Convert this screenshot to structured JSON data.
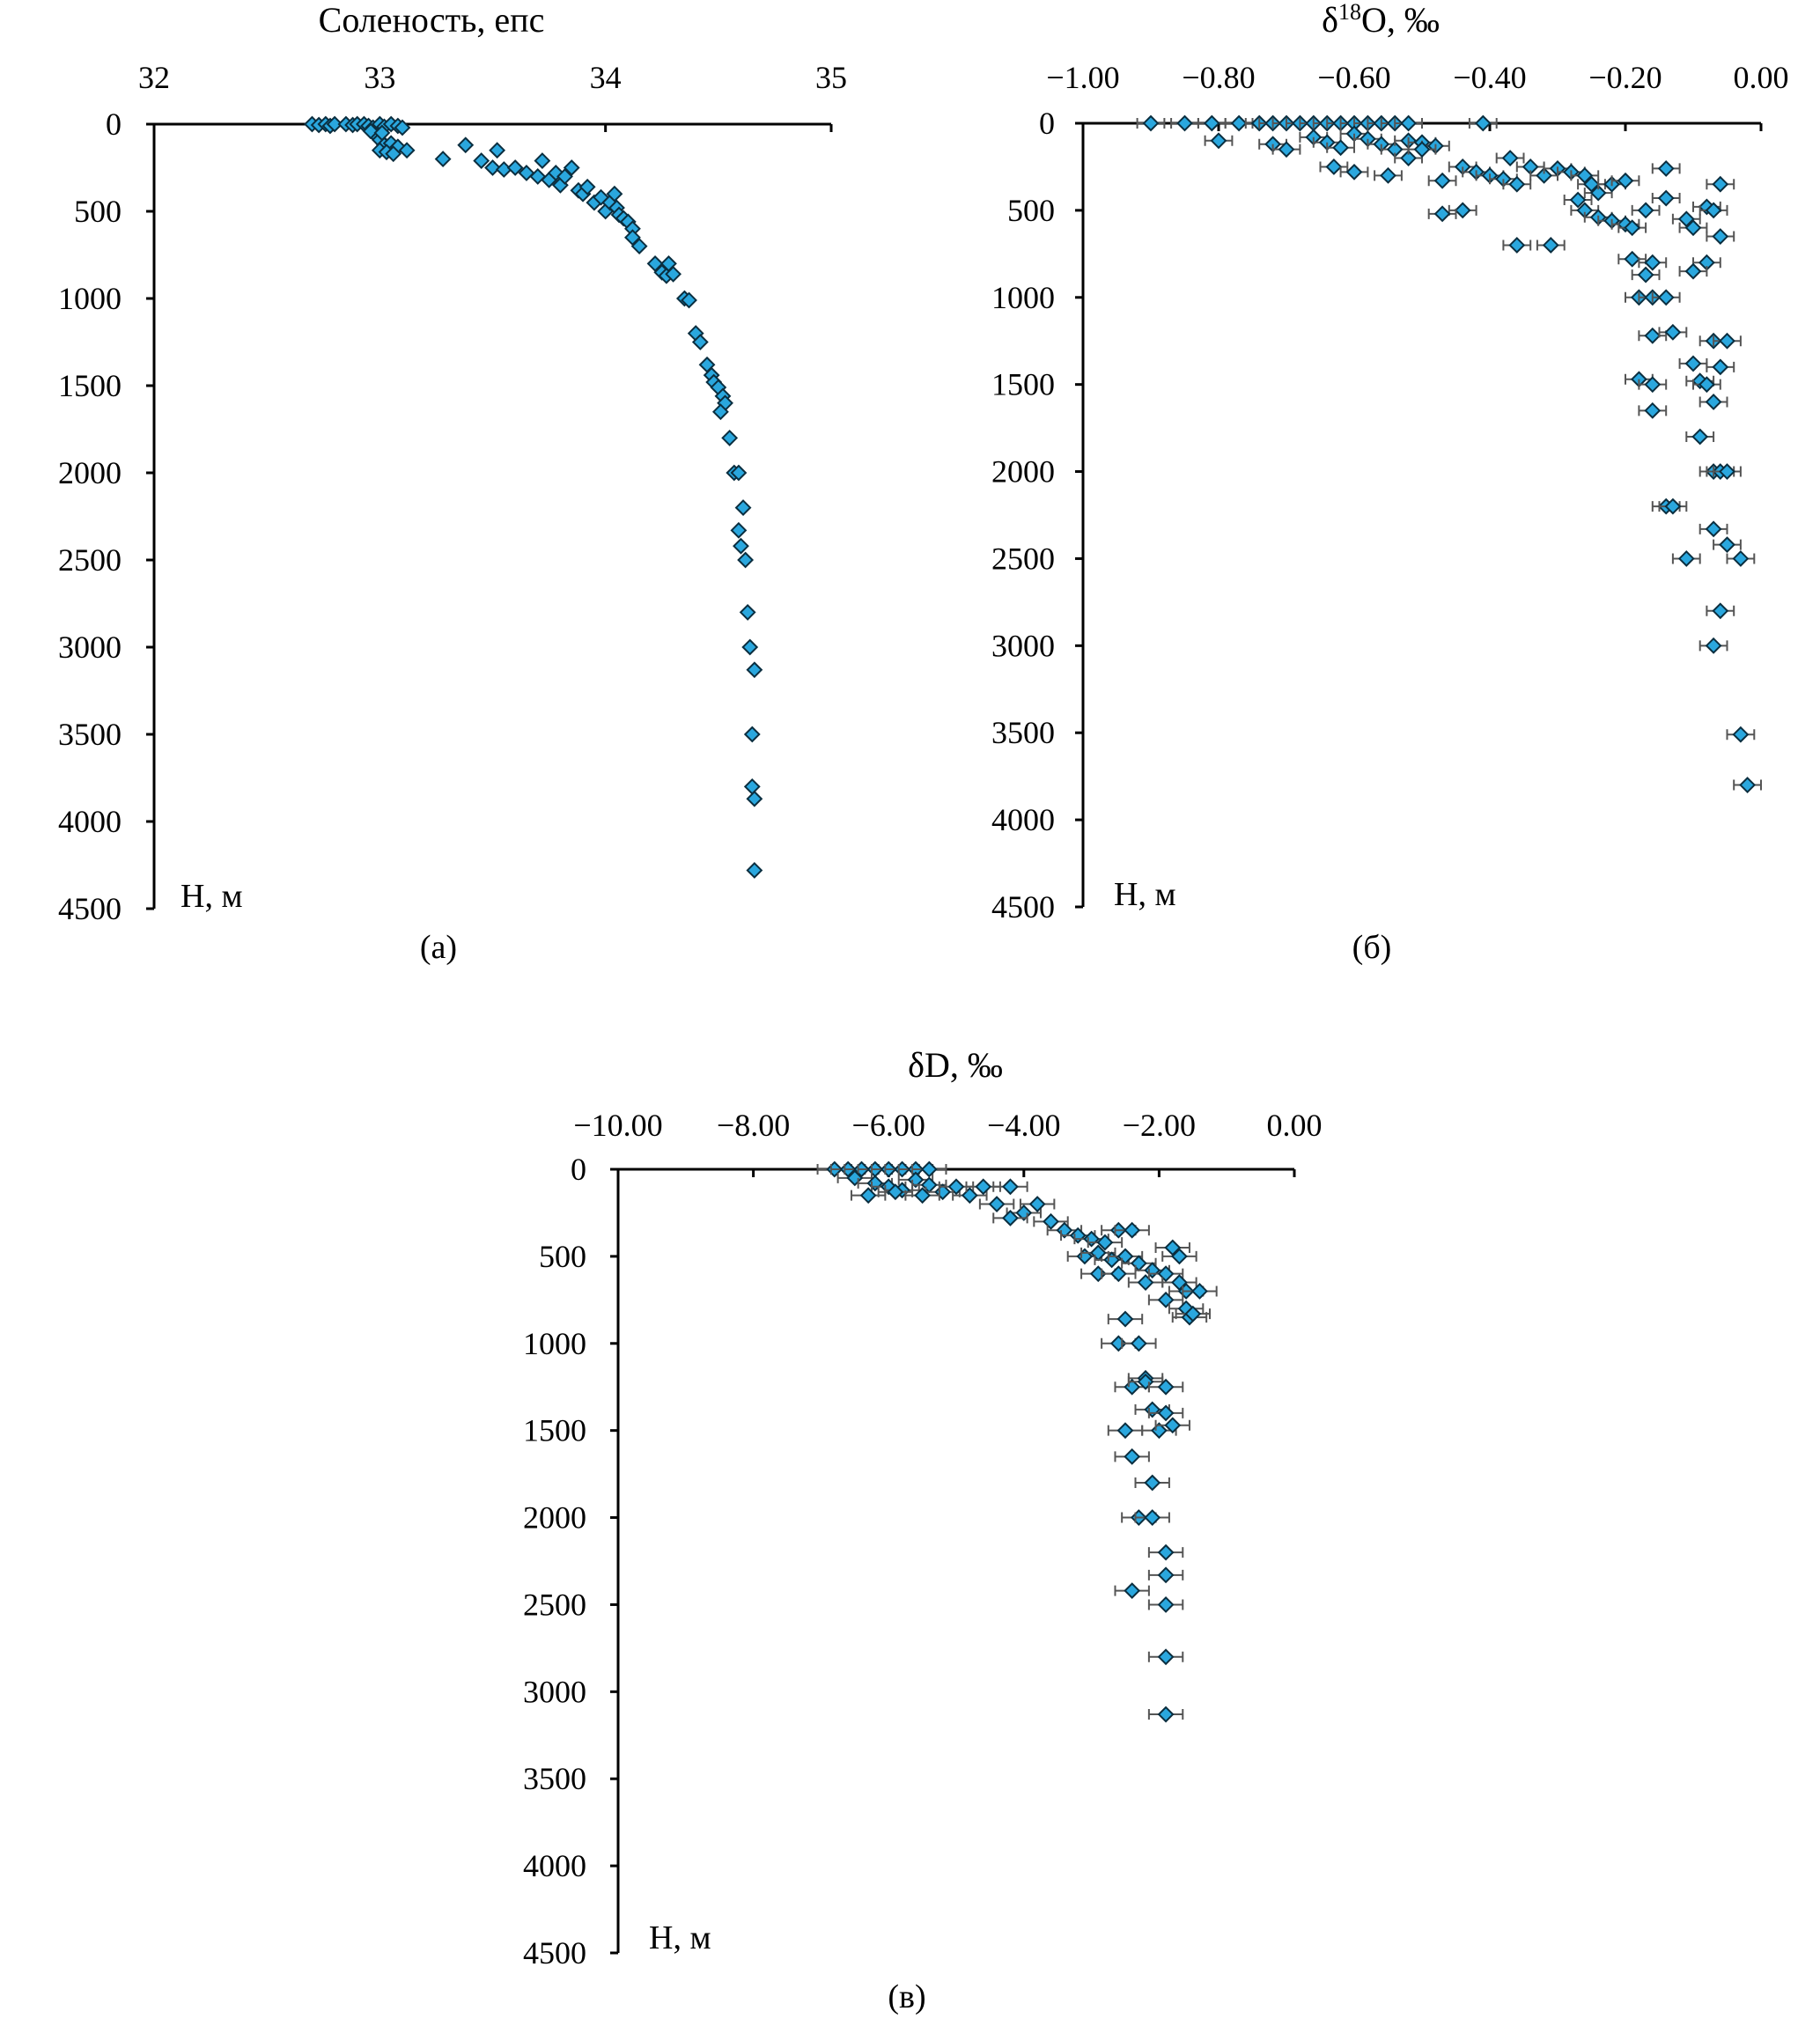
{
  "colors": {
    "point_fill": "#2aa7de",
    "point_stroke": "#0b2e3f",
    "error_bar": "#555555",
    "axis": "#000000"
  },
  "chart_data": [
    {
      "type": "scatter",
      "title": "Соленость, епс",
      "caption": "(а)",
      "ylabel": "H, м",
      "xlim": [
        32,
        35
      ],
      "ylim": [
        4500,
        0
      ],
      "x_axis_position": "top",
      "y_axis_inverted": true,
      "grid": false,
      "legend": "none",
      "x_ticks": [
        32,
        33,
        34,
        35
      ],
      "x_tick_labels": [
        "32",
        "33",
        "34",
        "35"
      ],
      "y_ticks": [
        0,
        500,
        1000,
        1500,
        2000,
        2500,
        3000,
        3500,
        4000,
        4500
      ],
      "y_tick_labels": [
        "0",
        "500",
        "1000",
        "1500",
        "2000",
        "2500",
        "3000",
        "3500",
        "4000",
        "4500"
      ],
      "error_bars": false,
      "points": [
        [
          32.7,
          0
        ],
        [
          32.73,
          5
        ],
        [
          32.76,
          0
        ],
        [
          32.78,
          10
        ],
        [
          32.8,
          0
        ],
        [
          32.85,
          0
        ],
        [
          32.88,
          5
        ],
        [
          32.9,
          0
        ],
        [
          32.93,
          0
        ],
        [
          32.95,
          10
        ],
        [
          32.97,
          20
        ],
        [
          33.0,
          0
        ],
        [
          33.02,
          15
        ],
        [
          33.05,
          0
        ],
        [
          33.08,
          10
        ],
        [
          33.1,
          20
        ],
        [
          32.98,
          60
        ],
        [
          33.0,
          90
        ],
        [
          33.02,
          120
        ],
        [
          33.05,
          110
        ],
        [
          33.08,
          130
        ],
        [
          33.12,
          150
        ],
        [
          33.0,
          150
        ],
        [
          33.03,
          160
        ],
        [
          33.06,
          170
        ],
        [
          32.96,
          40
        ],
        [
          33.01,
          50
        ],
        [
          33.28,
          200
        ],
        [
          33.38,
          120
        ],
        [
          33.45,
          210
        ],
        [
          33.5,
          250
        ],
        [
          33.52,
          150
        ],
        [
          33.55,
          260
        ],
        [
          33.6,
          250
        ],
        [
          33.65,
          280
        ],
        [
          33.7,
          300
        ],
        [
          33.72,
          210
        ],
        [
          33.75,
          320
        ],
        [
          33.78,
          280
        ],
        [
          33.8,
          350
        ],
        [
          33.82,
          300
        ],
        [
          33.85,
          250
        ],
        [
          33.88,
          380
        ],
        [
          33.9,
          400
        ],
        [
          33.92,
          360
        ],
        [
          33.95,
          450
        ],
        [
          33.98,
          420
        ],
        [
          34.0,
          500
        ],
        [
          34.02,
          450
        ],
        [
          34.05,
          480
        ],
        [
          34.04,
          400
        ],
        [
          34.06,
          520
        ],
        [
          34.08,
          540
        ],
        [
          34.1,
          560
        ],
        [
          34.12,
          600
        ],
        [
          34.12,
          650
        ],
        [
          34.15,
          700
        ],
        [
          34.22,
          800
        ],
        [
          34.25,
          850
        ],
        [
          34.27,
          870
        ],
        [
          34.28,
          800
        ],
        [
          34.3,
          860
        ],
        [
          34.35,
          1000
        ],
        [
          34.37,
          1010
        ],
        [
          34.4,
          1200
        ],
        [
          34.42,
          1250
        ],
        [
          34.45,
          1380
        ],
        [
          34.47,
          1440
        ],
        [
          34.48,
          1480
        ],
        [
          34.5,
          1510
        ],
        [
          34.52,
          1560
        ],
        [
          34.53,
          1600
        ],
        [
          34.51,
          1650
        ],
        [
          34.55,
          1800
        ],
        [
          34.57,
          2000
        ],
        [
          34.59,
          2000
        ],
        [
          34.61,
          2200
        ],
        [
          34.59,
          2330
        ],
        [
          34.6,
          2420
        ],
        [
          34.62,
          2500
        ],
        [
          34.63,
          2800
        ],
        [
          34.64,
          3000
        ],
        [
          34.66,
          3130
        ],
        [
          34.65,
          3500
        ],
        [
          34.65,
          3800
        ],
        [
          34.66,
          3870
        ],
        [
          34.66,
          4280
        ]
      ]
    },
    {
      "type": "scatter",
      "title": "δ18O, ‰",
      "title_main": "δ",
      "title_sup": "18",
      "title_rest": "O, ‰",
      "caption": "(б)",
      "ylabel": "H, м",
      "xlim": [
        -1.0,
        0.0
      ],
      "ylim": [
        4500,
        0
      ],
      "x_axis_position": "top",
      "y_axis_inverted": true,
      "grid": false,
      "legend": "none",
      "x_ticks": [
        -1.0,
        -0.8,
        -0.6,
        -0.4,
        -0.2,
        0.0
      ],
      "x_tick_labels": [
        "−1.00",
        "−0.80",
        "−0.60",
        "−0.40",
        "−0.20",
        "0.00"
      ],
      "y_ticks": [
        0,
        500,
        1000,
        1500,
        2000,
        2500,
        3000,
        3500,
        4000,
        4500
      ],
      "y_tick_labels": [
        "0",
        "500",
        "1000",
        "1500",
        "2000",
        "2500",
        "3000",
        "3500",
        "4000",
        "4500"
      ],
      "error_bars": true,
      "x_error": 0.02,
      "points": [
        [
          -0.9,
          0
        ],
        [
          -0.85,
          0
        ],
        [
          -0.81,
          0
        ],
        [
          -0.77,
          0
        ],
        [
          -0.74,
          0
        ],
        [
          -0.72,
          0
        ],
        [
          -0.7,
          0
        ],
        [
          -0.68,
          0
        ],
        [
          -0.66,
          0
        ],
        [
          -0.64,
          0
        ],
        [
          -0.62,
          0
        ],
        [
          -0.6,
          0
        ],
        [
          -0.58,
          0
        ],
        [
          -0.56,
          0
        ],
        [
          -0.54,
          0
        ],
        [
          -0.52,
          0
        ],
        [
          -0.41,
          0
        ],
        [
          -0.8,
          100
        ],
        [
          -0.72,
          120
        ],
        [
          -0.7,
          150
        ],
        [
          -0.66,
          80
        ],
        [
          -0.64,
          110
        ],
        [
          -0.62,
          140
        ],
        [
          -0.6,
          60
        ],
        [
          -0.58,
          90
        ],
        [
          -0.56,
          120
        ],
        [
          -0.54,
          150
        ],
        [
          -0.52,
          100
        ],
        [
          -0.5,
          110
        ],
        [
          -0.48,
          130
        ],
        [
          -0.63,
          250
        ],
        [
          -0.6,
          280
        ],
        [
          -0.55,
          300
        ],
        [
          -0.52,
          200
        ],
        [
          -0.5,
          150
        ],
        [
          -0.47,
          330
        ],
        [
          -0.44,
          250
        ],
        [
          -0.42,
          280
        ],
        [
          -0.4,
          300
        ],
        [
          -0.38,
          320
        ],
        [
          -0.37,
          200
        ],
        [
          -0.36,
          350
        ],
        [
          -0.34,
          250
        ],
        [
          -0.32,
          300
        ],
        [
          -0.3,
          260
        ],
        [
          -0.28,
          280
        ],
        [
          -0.26,
          300
        ],
        [
          -0.25,
          350
        ],
        [
          -0.24,
          400
        ],
        [
          -0.22,
          350
        ],
        [
          -0.2,
          330
        ],
        [
          -0.27,
          440
        ],
        [
          -0.26,
          500
        ],
        [
          -0.24,
          540
        ],
        [
          -0.22,
          560
        ],
        [
          -0.2,
          580
        ],
        [
          -0.19,
          600
        ],
        [
          -0.17,
          500
        ],
        [
          -0.44,
          500
        ],
        [
          -0.47,
          520
        ],
        [
          -0.36,
          700
        ],
        [
          -0.31,
          700
        ],
        [
          -0.19,
          780
        ],
        [
          -0.16,
          800
        ],
        [
          -0.17,
          870
        ],
        [
          -0.18,
          1000
        ],
        [
          -0.16,
          1000
        ],
        [
          -0.14,
          1000
        ],
        [
          -0.16,
          1220
        ],
        [
          -0.13,
          1200
        ],
        [
          -0.18,
          1470
        ],
        [
          -0.16,
          1500
        ],
        [
          -0.16,
          1650
        ],
        [
          -0.14,
          260
        ],
        [
          -0.14,
          430
        ],
        [
          -0.11,
          550
        ],
        [
          -0.1,
          600
        ],
        [
          -0.08,
          480
        ],
        [
          -0.07,
          500
        ],
        [
          -0.06,
          350
        ],
        [
          -0.06,
          650
        ],
        [
          -0.08,
          800
        ],
        [
          -0.1,
          850
        ],
        [
          -0.07,
          1250
        ],
        [
          -0.05,
          1250
        ],
        [
          -0.1,
          1380
        ],
        [
          -0.09,
          1480
        ],
        [
          -0.08,
          1500
        ],
        [
          -0.06,
          1400
        ],
        [
          -0.07,
          1600
        ],
        [
          -0.09,
          1800
        ],
        [
          -0.07,
          2000
        ],
        [
          -0.06,
          2000
        ],
        [
          -0.05,
          2000
        ],
        [
          -0.14,
          2200
        ],
        [
          -0.13,
          2200
        ],
        [
          -0.07,
          2330
        ],
        [
          -0.05,
          2420
        ],
        [
          -0.11,
          2500
        ],
        [
          -0.03,
          2500
        ],
        [
          -0.06,
          2800
        ],
        [
          -0.07,
          3000
        ],
        [
          -0.03,
          3510
        ],
        [
          -0.02,
          3800
        ]
      ]
    },
    {
      "type": "scatter",
      "title": "δD, ‰",
      "caption": "(в)",
      "ylabel": "H, м",
      "xlim": [
        -10.0,
        0.0
      ],
      "ylim": [
        4500,
        0
      ],
      "x_axis_position": "top",
      "y_axis_inverted": true,
      "grid": false,
      "legend": "none",
      "x_ticks": [
        -10.0,
        -8.0,
        -6.0,
        -4.0,
        -2.0,
        0.0
      ],
      "x_tick_labels": [
        "−10.00",
        "−8.00",
        "−6.00",
        "−4.00",
        "−2.00",
        "0.00"
      ],
      "y_ticks": [
        0,
        500,
        1000,
        1500,
        2000,
        2500,
        3000,
        3500,
        4000,
        4500
      ],
      "y_tick_labels": [
        "0",
        "500",
        "1000",
        "1500",
        "2000",
        "2500",
        "3000",
        "3500",
        "4000",
        "4500"
      ],
      "error_bars": true,
      "x_error": 0.25,
      "points": [
        [
          -6.8,
          0
        ],
        [
          -6.6,
          0
        ],
        [
          -6.4,
          0
        ],
        [
          -6.2,
          0
        ],
        [
          -6.0,
          0
        ],
        [
          -5.8,
          0
        ],
        [
          -5.6,
          0
        ],
        [
          -5.4,
          0
        ],
        [
          -6.5,
          50
        ],
        [
          -6.2,
          80
        ],
        [
          -6.0,
          100
        ],
        [
          -5.8,
          120
        ],
        [
          -5.6,
          60
        ],
        [
          -5.4,
          90
        ],
        [
          -5.2,
          130
        ],
        [
          -5.0,
          100
        ],
        [
          -6.3,
          150
        ],
        [
          -5.9,
          130
        ],
        [
          -5.5,
          150
        ],
        [
          -4.8,
          150
        ],
        [
          -4.6,
          100
        ],
        [
          -4.2,
          100
        ],
        [
          -4.4,
          200
        ],
        [
          -4.0,
          250
        ],
        [
          -3.8,
          200
        ],
        [
          -4.2,
          280
        ],
        [
          -3.6,
          300
        ],
        [
          -3.4,
          350
        ],
        [
          -3.2,
          380
        ],
        [
          -3.0,
          400
        ],
        [
          -2.8,
          420
        ],
        [
          -2.6,
          350
        ],
        [
          -2.4,
          350
        ],
        [
          -3.1,
          500
        ],
        [
          -2.9,
          480
        ],
        [
          -2.7,
          520
        ],
        [
          -2.5,
          500
        ],
        [
          -2.3,
          540
        ],
        [
          -2.1,
          580
        ],
        [
          -2.9,
          600
        ],
        [
          -2.6,
          600
        ],
        [
          -2.2,
          650
        ],
        [
          -1.9,
          600
        ],
        [
          -1.7,
          650
        ],
        [
          -1.6,
          700
        ],
        [
          -1.4,
          700
        ],
        [
          -1.8,
          450
        ],
        [
          -1.7,
          500
        ],
        [
          -1.9,
          750
        ],
        [
          -1.6,
          800
        ],
        [
          -1.55,
          850
        ],
        [
          -1.5,
          830
        ],
        [
          -2.5,
          860
        ],
        [
          -2.6,
          1000
        ],
        [
          -2.3,
          1000
        ],
        [
          -2.2,
          1200
        ],
        [
          -2.4,
          1250
        ],
        [
          -2.2,
          1220
        ],
        [
          -1.9,
          1250
        ],
        [
          -2.1,
          1380
        ],
        [
          -1.9,
          1400
        ],
        [
          -2.0,
          1500
        ],
        [
          -1.8,
          1470
        ],
        [
          -2.5,
          1500
        ],
        [
          -2.4,
          1650
        ],
        [
          -2.1,
          1800
        ],
        [
          -2.3,
          2000
        ],
        [
          -2.1,
          2000
        ],
        [
          -1.9,
          2200
        ],
        [
          -1.9,
          2330
        ],
        [
          -2.4,
          2420
        ],
        [
          -1.9,
          2500
        ],
        [
          -1.9,
          2800
        ],
        [
          -1.9,
          3130
        ]
      ]
    }
  ]
}
